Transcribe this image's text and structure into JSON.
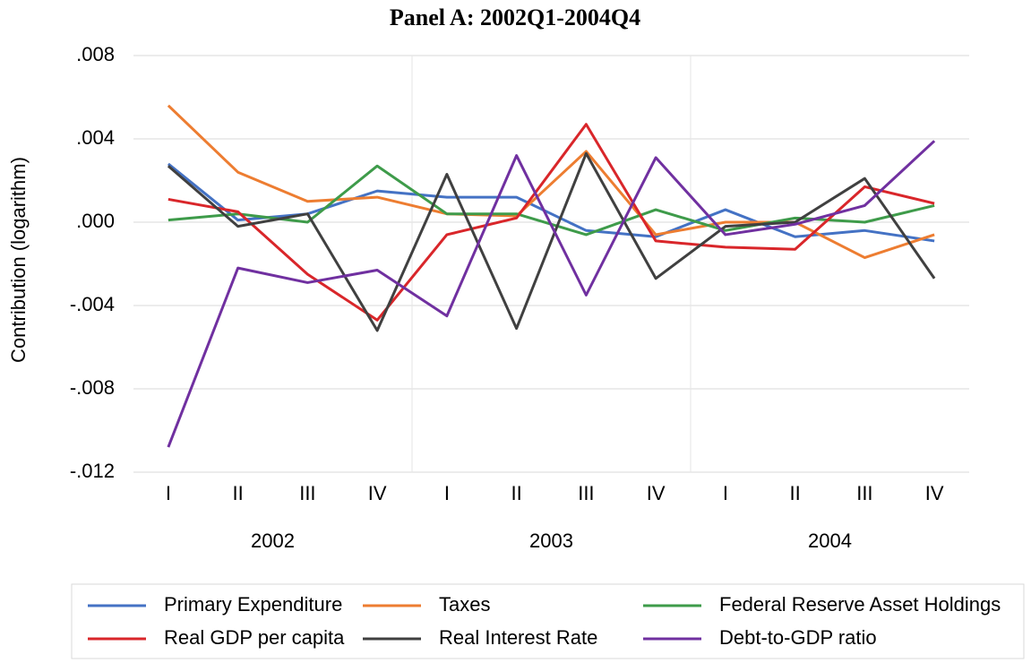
{
  "chart_data": {
    "type": "line",
    "title": "Panel A: 2002Q1-2004Q4",
    "y_label": "Contribution (logarithm)",
    "categories": [
      "I",
      "II",
      "III",
      "IV",
      "I",
      "II",
      "III",
      "IV",
      "I",
      "II",
      "III",
      "IV"
    ],
    "year_groups": [
      "2002",
      "2003",
      "2004"
    ],
    "ylim": [
      -0.012,
      0.008
    ],
    "yticks": [
      {
        "value": -0.012,
        "label": "-.012"
      },
      {
        "value": -0.008,
        "label": "-.008"
      },
      {
        "value": -0.004,
        "label": "-.004"
      },
      {
        "value": 0,
        "label": ".000"
      },
      {
        "value": 0.004,
        "label": ".004"
      },
      {
        "value": 0.008,
        "label": ".008"
      }
    ],
    "grid": true,
    "legend": "bottom",
    "series": [
      {
        "name": "Primary Expenditure",
        "color": "#4472c4",
        "values": [
          0.0028,
          0.0001,
          0.0004,
          0.0015,
          0.0012,
          0.0012,
          -0.0004,
          -0.0007,
          0.0006,
          -0.0007,
          -0.0004,
          -0.0009
        ]
      },
      {
        "name": "Taxes",
        "color": "#ed7d31",
        "values": [
          0.0056,
          0.0024,
          0.001,
          0.0012,
          0.0004,
          0.0003,
          0.0034,
          -0.0006,
          0.0,
          0.0,
          -0.0017,
          -0.0006
        ]
      },
      {
        "name": "Federal Reserve Asset Holdings",
        "color": "#3e9b4a",
        "values": [
          0.0001,
          0.0004,
          0.0,
          0.0027,
          0.0004,
          0.0004,
          -0.0006,
          0.0006,
          -0.0004,
          0.0002,
          0.0,
          0.0008
        ]
      },
      {
        "name": "Real GDP per capita",
        "color": "#d9262a",
        "values": [
          0.0011,
          0.0005,
          -0.0025,
          -0.0047,
          -0.0006,
          0.0002,
          0.0047,
          -0.0009,
          -0.0012,
          -0.0013,
          0.0017,
          0.0009
        ]
      },
      {
        "name": "Real Interest Rate",
        "color": "#404040",
        "values": [
          0.0027,
          -0.0002,
          0.0004,
          -0.0052,
          0.0023,
          -0.0051,
          0.0033,
          -0.0027,
          -0.0002,
          0.0,
          0.0021,
          -0.0027
        ]
      },
      {
        "name": "Debt-to-GDP ratio",
        "color": "#7030a0",
        "values": [
          -0.0108,
          -0.0022,
          -0.0029,
          -0.0023,
          -0.0045,
          0.0032,
          -0.0035,
          0.0031,
          -0.0006,
          -0.0001,
          0.0008,
          0.0039
        ]
      }
    ]
  }
}
